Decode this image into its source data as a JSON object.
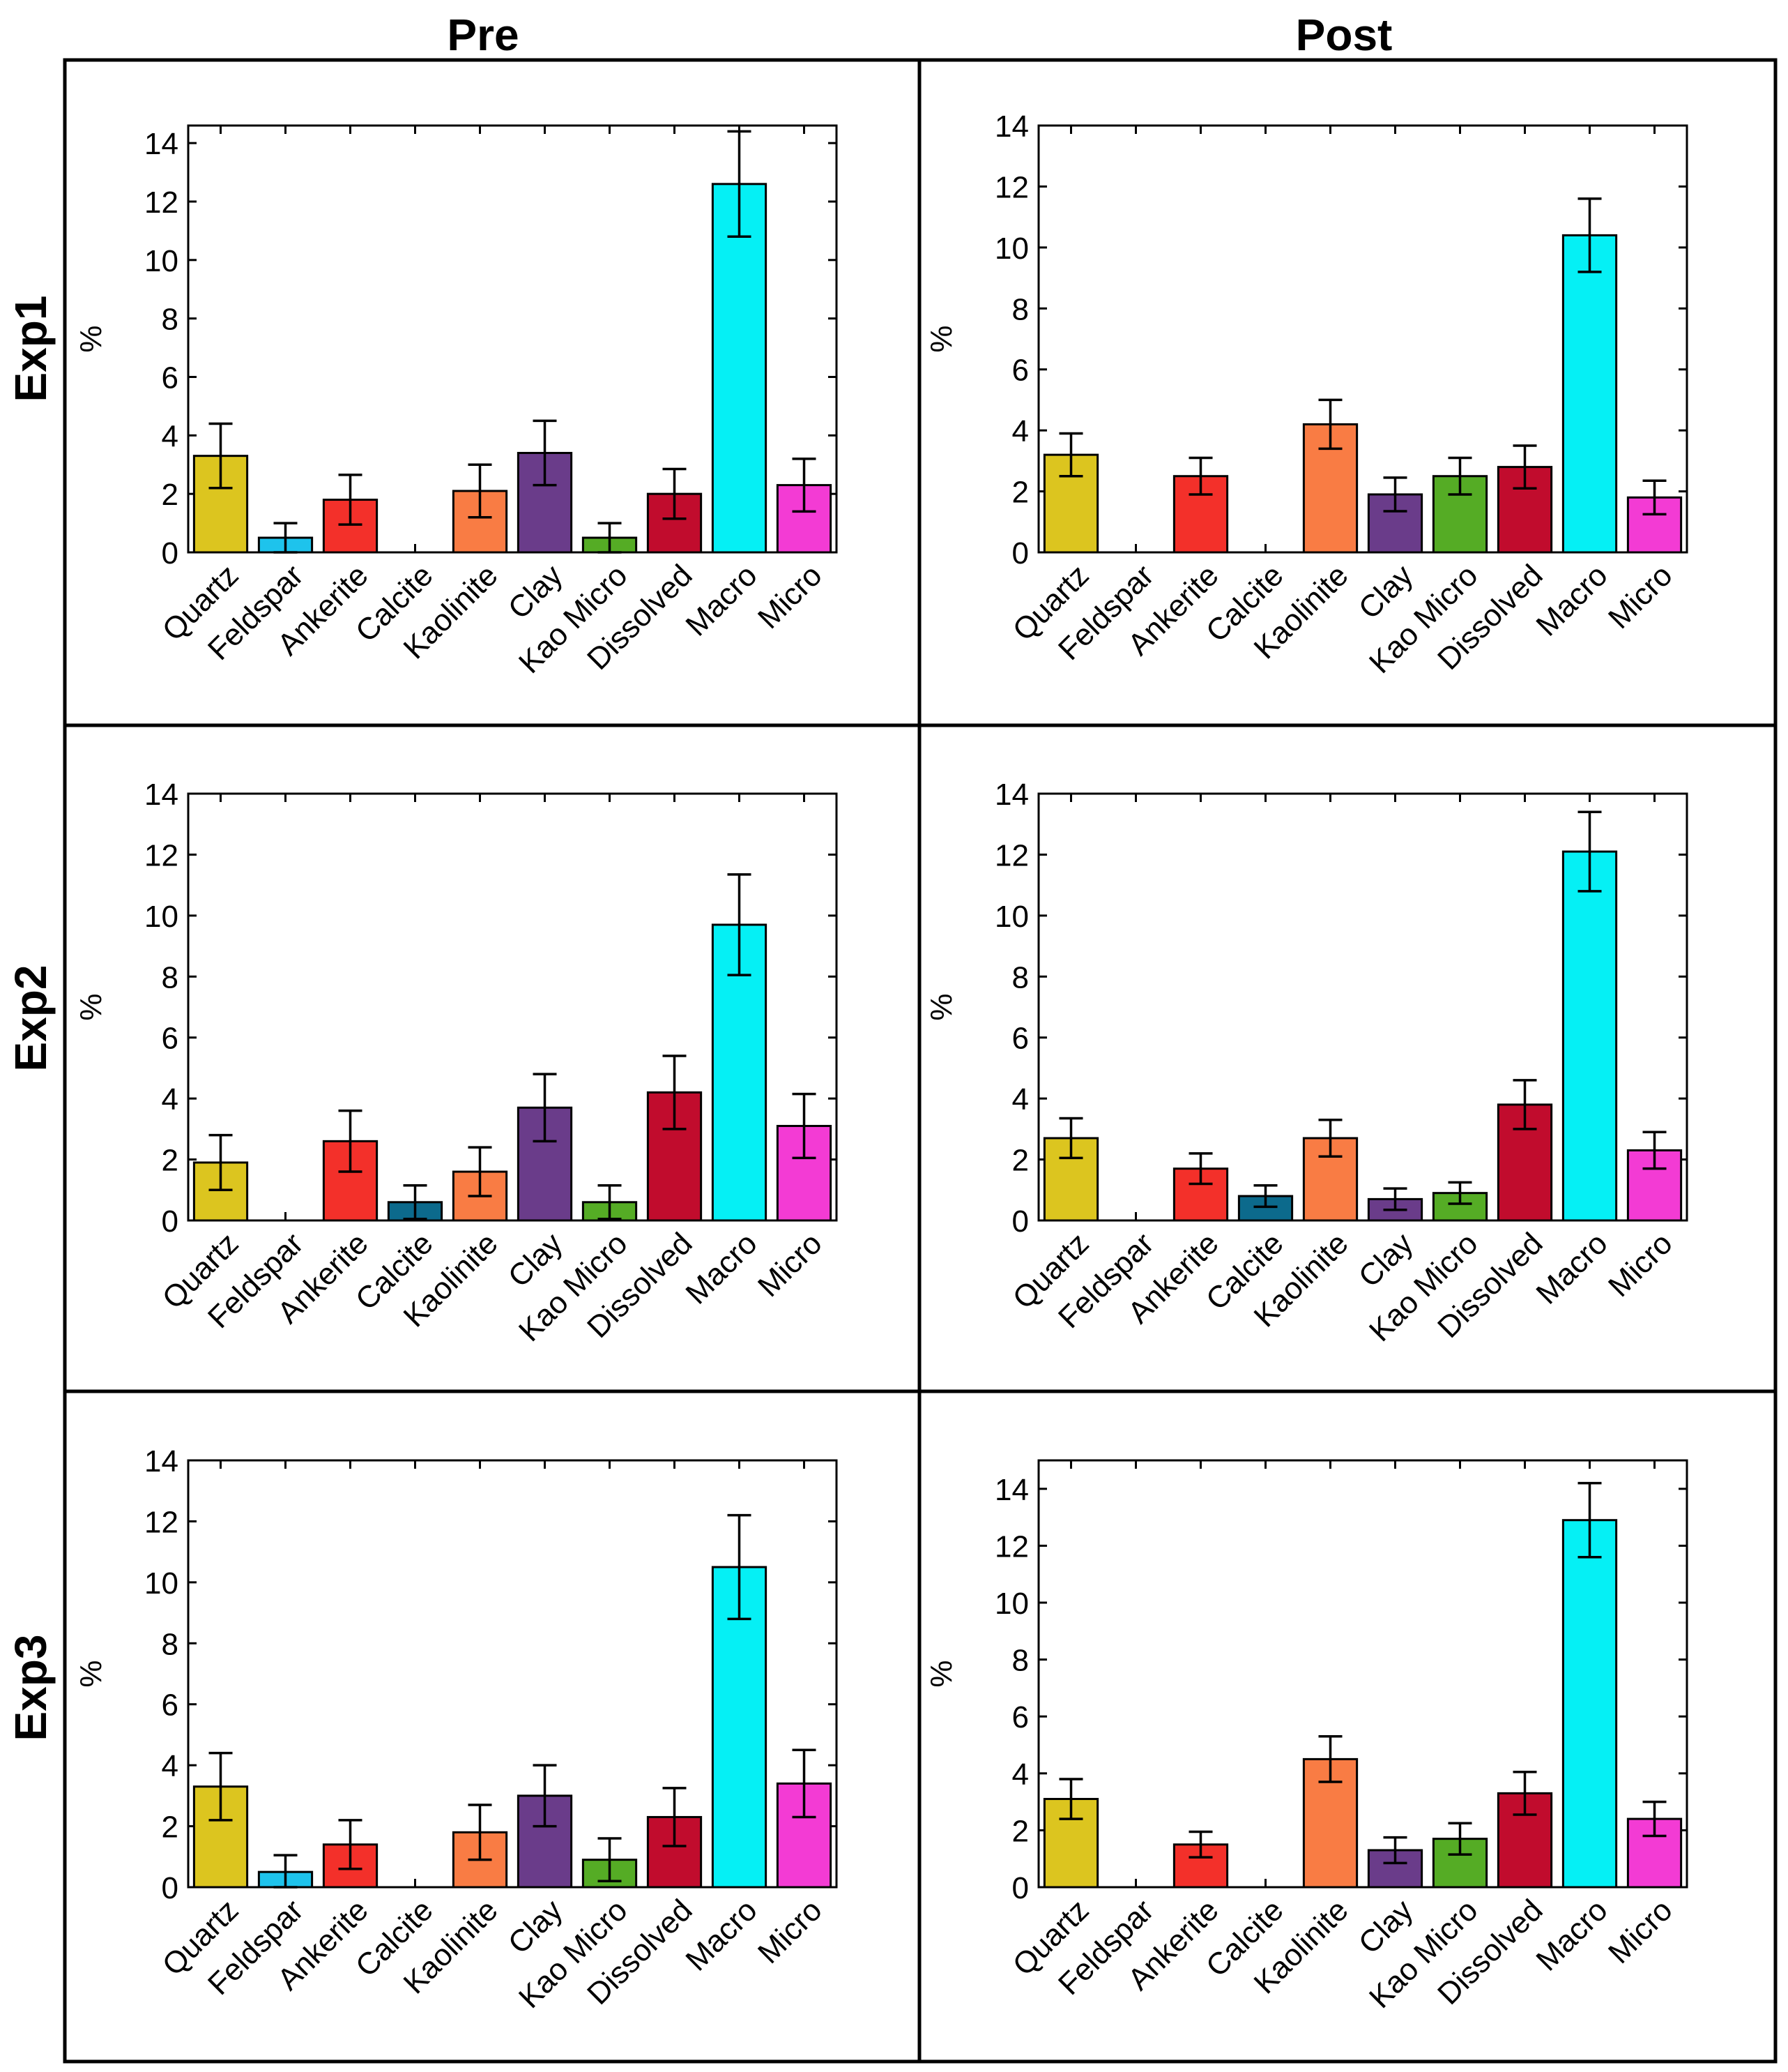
{
  "column_titles": [
    "Pre",
    "Post"
  ],
  "row_titles": [
    "Exp1",
    "Exp2",
    "Exp3"
  ],
  "colors": {
    "Quartz": "#dcc51f",
    "Feldspar": "#1ec3ec",
    "Ankerite": "#f3302a",
    "Calcite": "#0c6a8c",
    "Kaolinite": "#f97c44",
    "Clay": "#6a3c8a",
    "Kao Micro": "#55ac25",
    "Dissolved": "#c10c2d",
    "Macro": "#05f0f5",
    "Micro": "#f33bd4"
  },
  "chart_data": [
    {
      "id": "exp1-pre",
      "type": "bar",
      "row": "Exp1",
      "column": "Pre",
      "ylabel": "%",
      "ylim": [
        0,
        14.6
      ],
      "yticks": [
        0,
        2,
        4,
        6,
        8,
        10,
        12,
        14
      ],
      "categories": [
        "Quartz",
        "Feldspar",
        "Ankerite",
        "Calcite",
        "Kaolinite",
        "Clay",
        "Kao Micro",
        "Dissolved",
        "Macro",
        "Micro"
      ],
      "values": [
        3.3,
        0.5,
        1.8,
        0,
        2.1,
        3.4,
        0.5,
        2.0,
        12.6,
        2.3
      ],
      "errors": [
        1.1,
        0.5,
        0.85,
        0,
        0.9,
        1.1,
        0.5,
        0.85,
        1.8,
        0.9
      ]
    },
    {
      "id": "exp1-post",
      "type": "bar",
      "row": "Exp1",
      "column": "Post",
      "ylabel": "%",
      "ylim": [
        0,
        14
      ],
      "yticks": [
        0,
        2,
        4,
        6,
        8,
        10,
        12,
        14
      ],
      "categories": [
        "Quartz",
        "Feldspar",
        "Ankerite",
        "Calcite",
        "Kaolinite",
        "Clay",
        "Kao Micro",
        "Dissolved",
        "Macro",
        "Micro"
      ],
      "values": [
        3.2,
        0,
        2.5,
        0,
        4.2,
        1.9,
        2.5,
        2.8,
        10.4,
        1.8
      ],
      "errors": [
        0.7,
        0,
        0.6,
        0,
        0.8,
        0.55,
        0.6,
        0.7,
        1.2,
        0.55
      ]
    },
    {
      "id": "exp2-pre",
      "type": "bar",
      "row": "Exp2",
      "column": "Pre",
      "ylabel": "%",
      "ylim": [
        0,
        14
      ],
      "yticks": [
        0,
        2,
        4,
        6,
        8,
        10,
        12,
        14
      ],
      "categories": [
        "Quartz",
        "Feldspar",
        "Ankerite",
        "Calcite",
        "Kaolinite",
        "Clay",
        "Kao Micro",
        "Dissolved",
        "Macro",
        "Micro"
      ],
      "values": [
        1.9,
        0,
        2.6,
        0.6,
        1.6,
        3.7,
        0.6,
        4.2,
        9.7,
        3.1
      ],
      "errors": [
        0.9,
        0,
        1.0,
        0.55,
        0.8,
        1.1,
        0.55,
        1.2,
        1.65,
        1.05
      ]
    },
    {
      "id": "exp2-post",
      "type": "bar",
      "row": "Exp2",
      "column": "Post",
      "ylabel": "%",
      "ylim": [
        0,
        14
      ],
      "yticks": [
        0,
        2,
        4,
        6,
        8,
        10,
        12,
        14
      ],
      "categories": [
        "Quartz",
        "Feldspar",
        "Ankerite",
        "Calcite",
        "Kaolinite",
        "Clay",
        "Kao Micro",
        "Dissolved",
        "Macro",
        "Micro"
      ],
      "values": [
        2.7,
        0,
        1.7,
        0.8,
        2.7,
        0.7,
        0.9,
        3.8,
        12.1,
        2.3
      ],
      "errors": [
        0.65,
        0,
        0.5,
        0.35,
        0.6,
        0.35,
        0.35,
        0.8,
        1.3,
        0.6
      ]
    },
    {
      "id": "exp3-pre",
      "type": "bar",
      "row": "Exp3",
      "column": "Pre",
      "ylabel": "%",
      "ylim": [
        0,
        14
      ],
      "yticks": [
        0,
        2,
        4,
        6,
        8,
        10,
        12,
        14
      ],
      "categories": [
        "Quartz",
        "Feldspar",
        "Ankerite",
        "Calcite",
        "Kaolinite",
        "Clay",
        "Kao Micro",
        "Dissolved",
        "Macro",
        "Micro"
      ],
      "values": [
        3.3,
        0.5,
        1.4,
        0,
        1.8,
        3.0,
        0.9,
        2.3,
        10.5,
        3.4
      ],
      "errors": [
        1.1,
        0.55,
        0.8,
        0,
        0.9,
        1.0,
        0.7,
        0.95,
        1.7,
        1.1
      ]
    },
    {
      "id": "exp3-post",
      "type": "bar",
      "row": "Exp3",
      "column": "Post",
      "ylabel": "%",
      "ylim": [
        0,
        15
      ],
      "yticks": [
        0,
        2,
        4,
        6,
        8,
        10,
        12,
        14
      ],
      "categories": [
        "Quartz",
        "Feldspar",
        "Ankerite",
        "Calcite",
        "Kaolinite",
        "Clay",
        "Kao Micro",
        "Dissolved",
        "Macro",
        "Micro"
      ],
      "values": [
        3.1,
        0,
        1.5,
        0,
        4.5,
        1.3,
        1.7,
        3.3,
        12.9,
        2.4
      ],
      "errors": [
        0.7,
        0,
        0.45,
        0,
        0.8,
        0.45,
        0.55,
        0.75,
        1.3,
        0.6
      ]
    }
  ]
}
